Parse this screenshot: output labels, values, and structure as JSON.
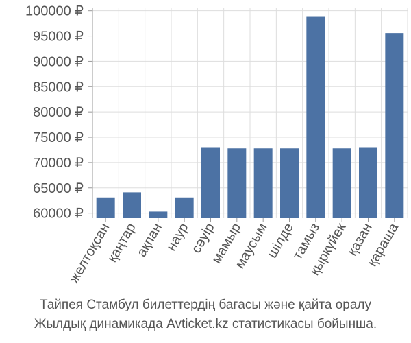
{
  "chart_data": {
    "type": "bar",
    "categories": [
      "желтоқсан",
      "қаңтар",
      "ақпан",
      "наур",
      "сәуір",
      "мамыр",
      "маусым",
      "шілде",
      "тамыз",
      "қыркүйек",
      "қазан",
      "қараша"
    ],
    "values": [
      63100,
      64100,
      60300,
      63100,
      72900,
      72800,
      72800,
      72800,
      98800,
      72800,
      72900,
      95600
    ],
    "ylim": [
      59000,
      100500
    ],
    "yticks": [
      60000,
      65000,
      70000,
      75000,
      80000,
      85000,
      90000,
      95000,
      100000
    ],
    "ytick_labels": [
      "60000 ₽",
      "65000 ₽",
      "70000 ₽",
      "75000 ₽",
      "80000 ₽",
      "85000 ₽",
      "90000 ₽",
      "95000 ₽",
      "100000 ₽"
    ],
    "grid": true,
    "bar_color": "#4c72a4",
    "grid_color": "#dddddd"
  },
  "caption": {
    "line1": "Тайпея Стамбул билеттердің бағасы және қайта оралу",
    "line2": "Жылдық динамикада Avticket.kz статистикасы бойынша."
  }
}
